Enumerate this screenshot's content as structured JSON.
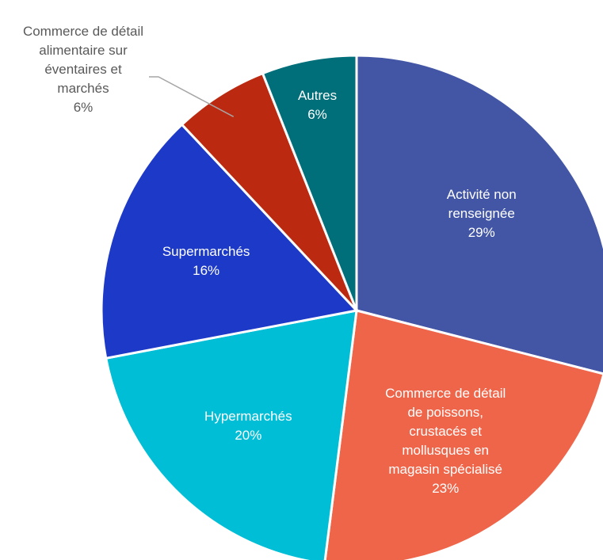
{
  "chart_data": {
    "type": "pie",
    "categories": [
      "Activité non renseignée",
      "Commerce de détail de poissons, crustacés et mollusques en magasin spécialisé",
      "Hypermarchés",
      "Supermarchés",
      "Commerce de détail alimentaire sur éventaires et marchés",
      "Autres"
    ],
    "values": [
      29,
      23,
      20,
      16,
      6,
      6
    ],
    "value_labels": [
      "29%",
      "23%",
      "20%",
      "16%",
      "6%",
      "6%"
    ],
    "colors": [
      "#4356a6",
      "#ef6549",
      "#00bed6",
      "#1d39c8",
      "#bb2a10",
      "#006f7a"
    ]
  }
}
